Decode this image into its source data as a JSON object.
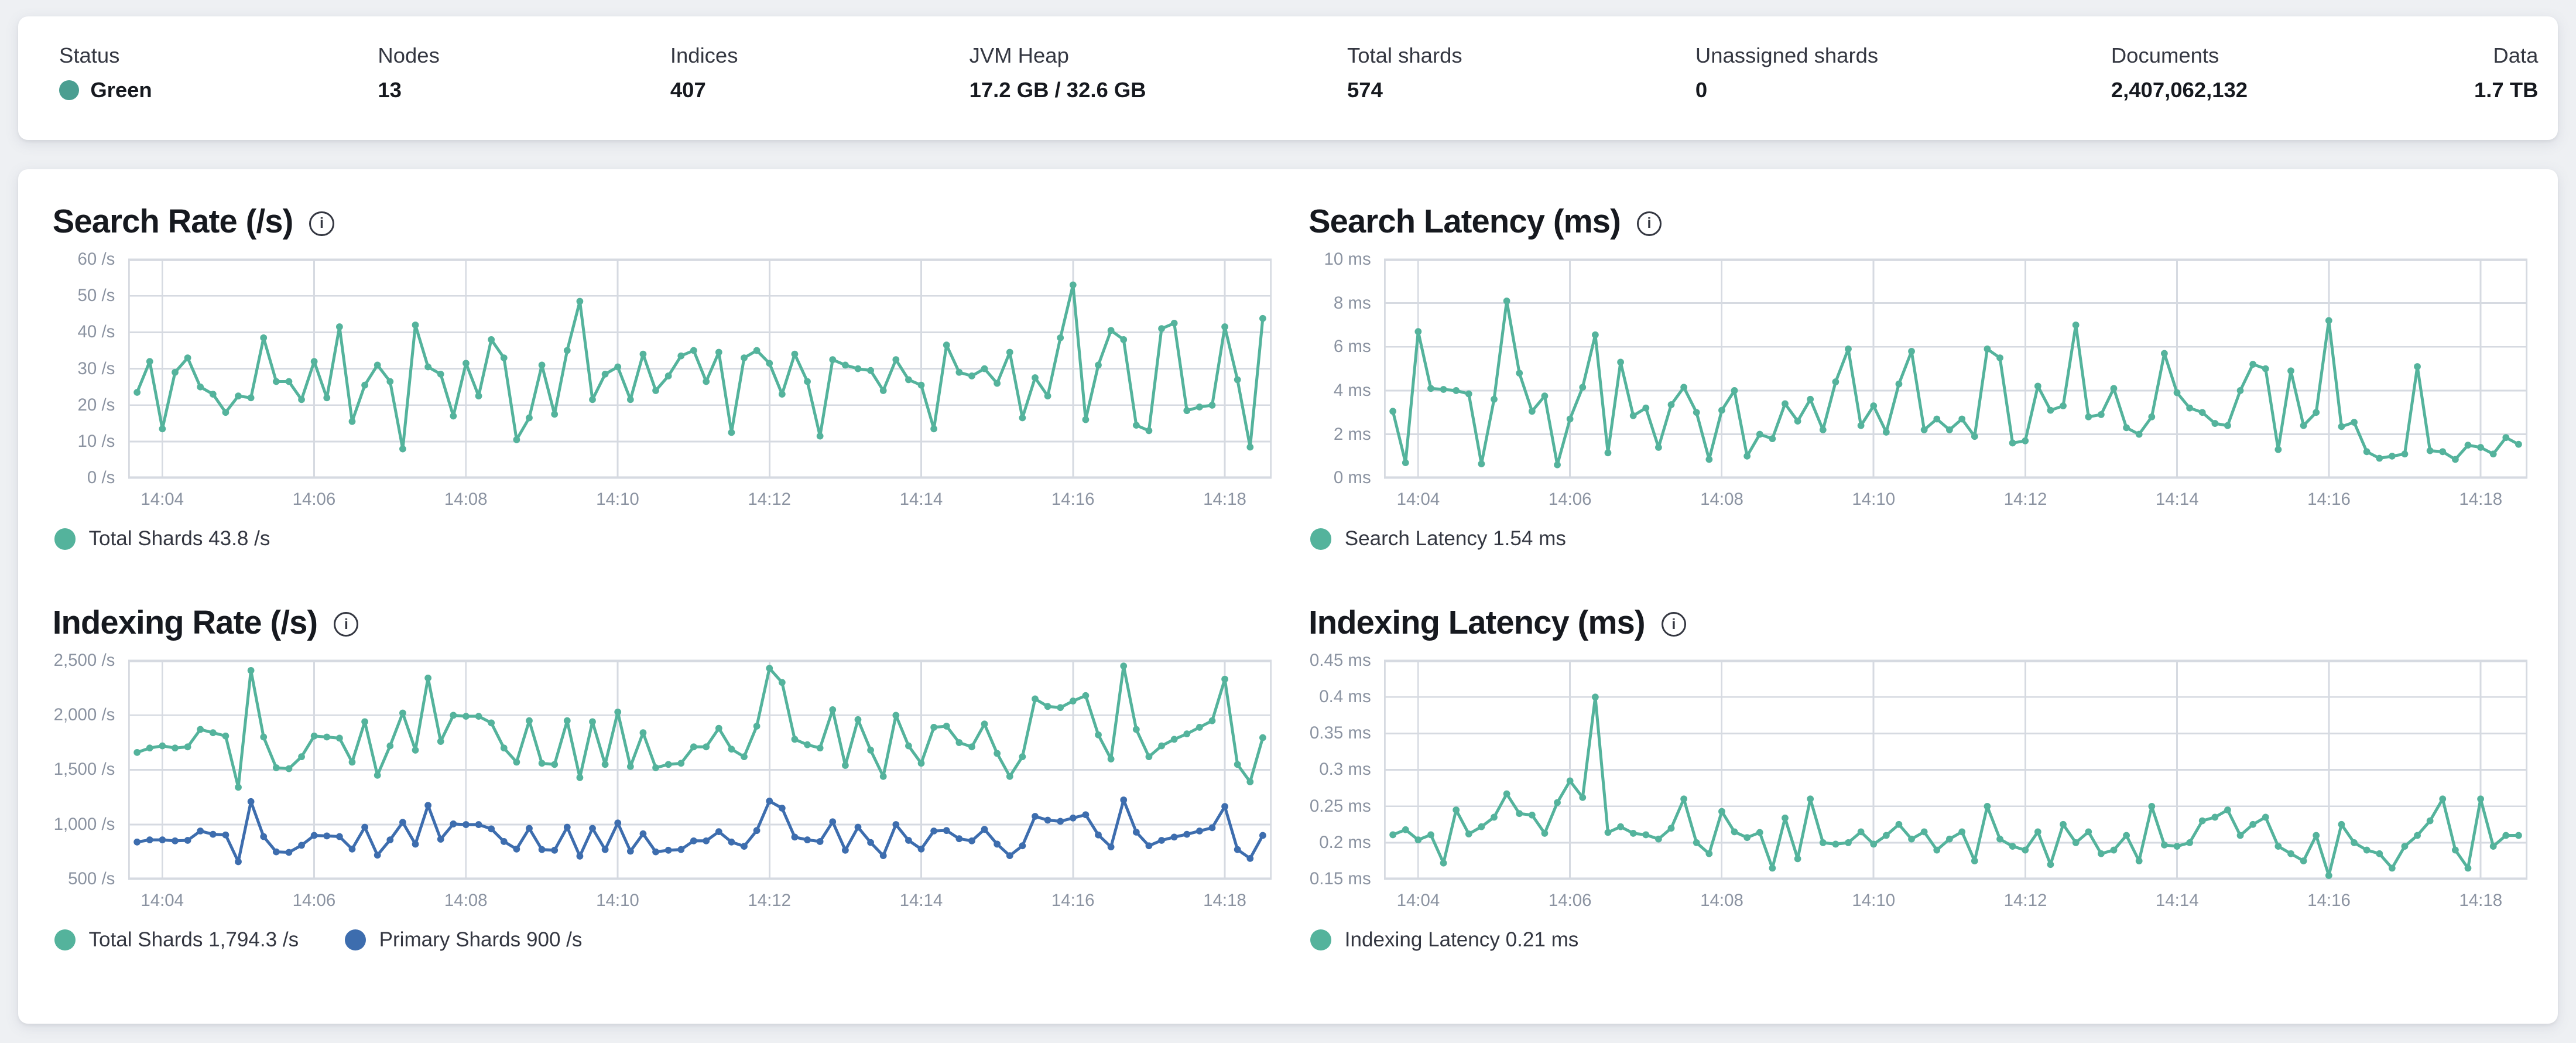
{
  "colors": {
    "teal": "#54B39C",
    "blue": "#3D6DAE",
    "status_green": "#4A9E91",
    "grid": "#d6dae1",
    "axis_text": "#8b93a1"
  },
  "overview": {
    "stats": [
      {
        "label": "Status",
        "value": "Green",
        "type": "status"
      },
      {
        "label": "Nodes",
        "value": "13"
      },
      {
        "label": "Indices",
        "value": "407"
      },
      {
        "label": "JVM Heap",
        "value": "17.2 GB / 32.6 GB"
      },
      {
        "label": "Total shards",
        "value": "574"
      },
      {
        "label": "Unassigned shards",
        "value": "0"
      },
      {
        "label": "Documents",
        "value": "2,407,062,132"
      },
      {
        "label": "Data",
        "value": "1.7 TB"
      }
    ]
  },
  "chart_data": [
    {
      "id": "search-rate",
      "type": "line",
      "title": "Search Rate (/s)",
      "ylabel": "/s",
      "ylim": [
        0,
        60
      ],
      "grid": true,
      "legend_position": "bottom",
      "x_start": "14:03:40",
      "x_interval_seconds": 10,
      "y_ticks": [
        {
          "value": 60,
          "label": "60 /s"
        },
        {
          "value": 50,
          "label": "50 /s"
        },
        {
          "value": 40,
          "label": "40 /s"
        },
        {
          "value": 30,
          "label": "30 /s"
        },
        {
          "value": 20,
          "label": "20 /s"
        },
        {
          "value": 10,
          "label": "10 /s"
        },
        {
          "value": 0,
          "label": "0 /s"
        }
      ],
      "x_ticks": [
        {
          "index": 2,
          "label": "14:04"
        },
        {
          "index": 14,
          "label": "14:06"
        },
        {
          "index": 26,
          "label": "14:08"
        },
        {
          "index": 38,
          "label": "14:10"
        },
        {
          "index": 50,
          "label": "14:12"
        },
        {
          "index": 62,
          "label": "14:14"
        },
        {
          "index": 74,
          "label": "14:16"
        },
        {
          "index": 86,
          "label": "14:18"
        }
      ],
      "series": [
        {
          "name": "Total Shards",
          "color_key": "teal",
          "current": "43.8 /s",
          "values": [
            23.5,
            32,
            13.5,
            29,
            33,
            25,
            23,
            18,
            22.5,
            22,
            38.5,
            26.5,
            26.5,
            21.5,
            32,
            22,
            41.5,
            15.5,
            25.5,
            31,
            26.5,
            8,
            42,
            30.5,
            28.5,
            17,
            31.5,
            22.5,
            38,
            33,
            10.5,
            16.5,
            31,
            17.5,
            35,
            48.5,
            21.5,
            28.5,
            30.5,
            21.5,
            34,
            24,
            28,
            33.5,
            35,
            26.5,
            34.5,
            12.5,
            33,
            35,
            31.5,
            23,
            34,
            26.5,
            11.5,
            32.5,
            31,
            30,
            29.5,
            24,
            32.5,
            27,
            25.5,
            13.5,
            36.5,
            29,
            28,
            30,
            26,
            34.5,
            16.5,
            27.5,
            22.5,
            38.5,
            53,
            16,
            31,
            40.5,
            38,
            14.5,
            13,
            41,
            42.5,
            18.5,
            19.5,
            20,
            41.5,
            27,
            8.5,
            43.8
          ]
        }
      ],
      "legend": [
        {
          "label": "Total Shards 43.8 /s",
          "color_key": "teal"
        }
      ]
    },
    {
      "id": "search-latency",
      "type": "line",
      "title": "Search Latency (ms)",
      "ylabel": "ms",
      "ylim": [
        0,
        10
      ],
      "grid": true,
      "legend_position": "bottom",
      "x_start": "14:03:40",
      "x_interval_seconds": 10,
      "y_ticks": [
        {
          "value": 10,
          "label": "10 ms"
        },
        {
          "value": 8,
          "label": "8 ms"
        },
        {
          "value": 6,
          "label": "6 ms"
        },
        {
          "value": 4,
          "label": "4 ms"
        },
        {
          "value": 2,
          "label": "2 ms"
        },
        {
          "value": 0,
          "label": "0 ms"
        }
      ],
      "x_ticks": [
        {
          "index": 2,
          "label": "14:04"
        },
        {
          "index": 14,
          "label": "14:06"
        },
        {
          "index": 26,
          "label": "14:08"
        },
        {
          "index": 38,
          "label": "14:10"
        },
        {
          "index": 50,
          "label": "14:12"
        },
        {
          "index": 62,
          "label": "14:14"
        },
        {
          "index": 74,
          "label": "14:16"
        },
        {
          "index": 86,
          "label": "14:18"
        }
      ],
      "series": [
        {
          "name": "Search Latency",
          "color_key": "teal",
          "current": "1.54 ms",
          "values": [
            3.05,
            0.7,
            6.7,
            4.1,
            4.05,
            4.0,
            3.85,
            0.65,
            3.6,
            8.1,
            4.8,
            3.05,
            3.75,
            0.6,
            2.7,
            4.15,
            6.55,
            1.15,
            5.3,
            2.85,
            3.2,
            1.4,
            3.35,
            4.15,
            3.0,
            0.85,
            3.1,
            4.0,
            1.0,
            2.0,
            1.8,
            3.4,
            2.6,
            3.6,
            2.2,
            4.4,
            5.9,
            2.4,
            3.3,
            2.1,
            4.3,
            5.8,
            2.2,
            2.7,
            2.2,
            2.7,
            1.9,
            5.9,
            5.5,
            1.6,
            1.7,
            4.2,
            3.1,
            3.3,
            7.0,
            2.8,
            2.9,
            4.1,
            2.3,
            2.0,
            2.8,
            5.7,
            3.9,
            3.2,
            3.0,
            2.5,
            2.4,
            4.0,
            5.2,
            5.0,
            1.3,
            4.9,
            2.4,
            3.0,
            7.2,
            2.35,
            2.55,
            1.2,
            0.9,
            1.0,
            1.1,
            5.1,
            1.25,
            1.2,
            0.85,
            1.5,
            1.4,
            1.1,
            1.85,
            1.54
          ]
        }
      ],
      "legend": [
        {
          "label": "Search Latency 1.54 ms",
          "color_key": "teal"
        }
      ]
    },
    {
      "id": "indexing-rate",
      "type": "line",
      "title": "Indexing Rate (/s)",
      "ylabel": "/s",
      "ylim": [
        500,
        2500
      ],
      "grid": true,
      "legend_position": "bottom",
      "x_start": "14:03:40",
      "x_interval_seconds": 10,
      "y_ticks": [
        {
          "value": 2500,
          "label": "2,500 /s"
        },
        {
          "value": 2000,
          "label": "2,000 /s"
        },
        {
          "value": 1500,
          "label": "1,500 /s"
        },
        {
          "value": 1000,
          "label": "1,000 /s"
        },
        {
          "value": 500,
          "label": "500 /s"
        }
      ],
      "x_ticks": [
        {
          "index": 2,
          "label": "14:04"
        },
        {
          "index": 14,
          "label": "14:06"
        },
        {
          "index": 26,
          "label": "14:08"
        },
        {
          "index": 38,
          "label": "14:10"
        },
        {
          "index": 50,
          "label": "14:12"
        },
        {
          "index": 62,
          "label": "14:14"
        },
        {
          "index": 74,
          "label": "14:16"
        },
        {
          "index": 86,
          "label": "14:18"
        }
      ],
      "series": [
        {
          "name": "Total Shards",
          "color_key": "teal",
          "current": "1,794.3 /s",
          "values": [
            1660,
            1700,
            1720,
            1700,
            1710,
            1870,
            1840,
            1810,
            1340,
            2410,
            1800,
            1520,
            1510,
            1620,
            1810,
            1800,
            1790,
            1570,
            1940,
            1450,
            1720,
            2020,
            1680,
            2340,
            1760,
            2000,
            1990,
            1990,
            1930,
            1700,
            1570,
            1950,
            1560,
            1550,
            1950,
            1430,
            1940,
            1550,
            2030,
            1530,
            1840,
            1520,
            1550,
            1560,
            1710,
            1710,
            1880,
            1690,
            1620,
            1900,
            2430,
            2300,
            1780,
            1730,
            1700,
            2050,
            1540,
            1960,
            1680,
            1440,
            2000,
            1720,
            1560,
            1890,
            1900,
            1750,
            1710,
            1920,
            1650,
            1440,
            1620,
            2150,
            2080,
            2070,
            2130,
            2180,
            1820,
            1600,
            2450,
            1870,
            1620,
            1720,
            1780,
            1830,
            1890,
            1950,
            2330,
            1550,
            1390,
            1794.3
          ]
        },
        {
          "name": "Primary Shards",
          "color_key": "blue",
          "current": "900 /s",
          "values": [
            840,
            860,
            860,
            850,
            855,
            940,
            910,
            905,
            660,
            1210,
            890,
            750,
            745,
            810,
            900,
            895,
            890,
            775,
            975,
            720,
            860,
            1020,
            820,
            1175,
            865,
            1005,
            1000,
            1000,
            960,
            845,
            775,
            965,
            770,
            765,
            975,
            710,
            965,
            770,
            1015,
            755,
            915,
            750,
            765,
            770,
            850,
            850,
            935,
            840,
            800,
            945,
            1215,
            1150,
            885,
            860,
            845,
            1025,
            765,
            975,
            835,
            715,
            1000,
            855,
            775,
            940,
            945,
            870,
            850,
            955,
            820,
            715,
            805,
            1075,
            1040,
            1030,
            1060,
            1090,
            905,
            795,
            1225,
            930,
            805,
            855,
            885,
            910,
            940,
            970,
            1165,
            770,
            690,
            900
          ]
        }
      ],
      "legend": [
        {
          "label": "Total Shards 1,794.3 /s",
          "color_key": "teal"
        },
        {
          "label": "Primary Shards 900 /s",
          "color_key": "blue"
        }
      ]
    },
    {
      "id": "indexing-latency",
      "type": "line",
      "title": "Indexing Latency (ms)",
      "ylabel": "ms",
      "ylim": [
        0.15,
        0.45
      ],
      "grid": true,
      "legend_position": "bottom",
      "x_start": "14:03:40",
      "x_interval_seconds": 10,
      "y_ticks": [
        {
          "value": 0.45,
          "label": "0.45 ms"
        },
        {
          "value": 0.4,
          "label": "0.4 ms"
        },
        {
          "value": 0.35,
          "label": "0.35 ms"
        },
        {
          "value": 0.3,
          "label": "0.3 ms"
        },
        {
          "value": 0.25,
          "label": "0.25 ms"
        },
        {
          "value": 0.2,
          "label": "0.2 ms"
        },
        {
          "value": 0.15,
          "label": "0.15 ms"
        }
      ],
      "x_ticks": [
        {
          "index": 2,
          "label": "14:04"
        },
        {
          "index": 14,
          "label": "14:06"
        },
        {
          "index": 26,
          "label": "14:08"
        },
        {
          "index": 38,
          "label": "14:10"
        },
        {
          "index": 50,
          "label": "14:12"
        },
        {
          "index": 62,
          "label": "14:14"
        },
        {
          "index": 74,
          "label": "14:16"
        },
        {
          "index": 86,
          "label": "14:18"
        }
      ],
      "series": [
        {
          "name": "Indexing Latency",
          "color_key": "teal",
          "current": "0.21 ms",
          "values": [
            0.211,
            0.218,
            0.204,
            0.211,
            0.172,
            0.245,
            0.212,
            0.222,
            0.235,
            0.267,
            0.24,
            0.238,
            0.213,
            0.255,
            0.285,
            0.262,
            0.4,
            0.214,
            0.222,
            0.213,
            0.211,
            0.205,
            0.22,
            0.26,
            0.2,
            0.185,
            0.243,
            0.215,
            0.207,
            0.214,
            0.165,
            0.234,
            0.178,
            0.26,
            0.2,
            0.198,
            0.2,
            0.215,
            0.198,
            0.21,
            0.225,
            0.205,
            0.215,
            0.19,
            0.205,
            0.215,
            0.175,
            0.25,
            0.205,
            0.195,
            0.19,
            0.215,
            0.17,
            0.225,
            0.2,
            0.215,
            0.185,
            0.19,
            0.21,
            0.175,
            0.25,
            0.197,
            0.195,
            0.2,
            0.23,
            0.235,
            0.245,
            0.21,
            0.225,
            0.235,
            0.195,
            0.185,
            0.175,
            0.21,
            0.155,
            0.225,
            0.2,
            0.19,
            0.185,
            0.165,
            0.195,
            0.21,
            0.23,
            0.26,
            0.19,
            0.165,
            0.26,
            0.195,
            0.21,
            0.21
          ]
        }
      ],
      "legend": [
        {
          "label": "Indexing Latency 0.21 ms",
          "color_key": "teal"
        }
      ]
    }
  ]
}
